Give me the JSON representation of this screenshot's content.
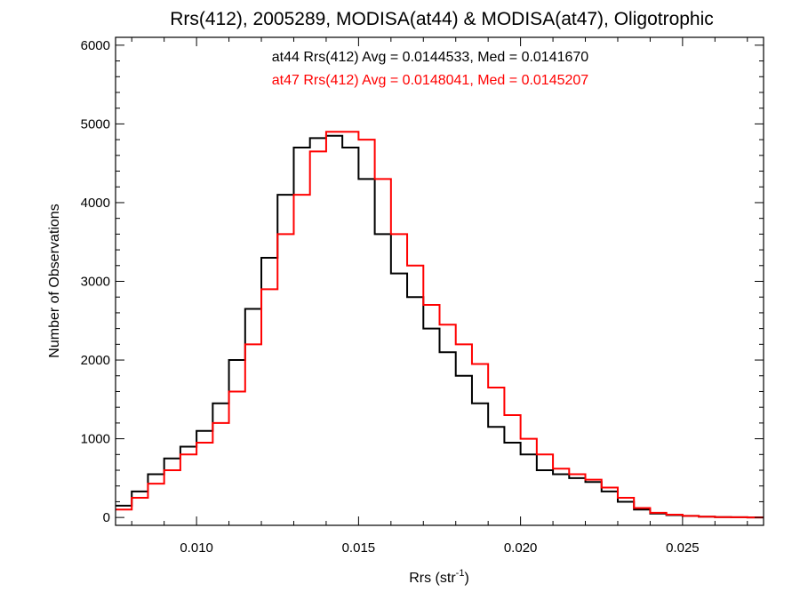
{
  "chart_data": {
    "type": "line",
    "title": "Rrs(412), 2005289, MODISA(at44) & MODISA(at47), Oligotrophic",
    "xlabel_main": "Rrs (str",
    "xlabel_sup": "-1",
    "xlabel_close": ")",
    "ylabel": "Number of Observations",
    "xlim": [
      0.0075,
      0.0275
    ],
    "ylim": [
      -100,
      6100
    ],
    "x_ticks": [
      0.01,
      0.015,
      0.02,
      0.025
    ],
    "x_tick_labels": [
      "0.010",
      "0.015",
      "0.020",
      "0.025"
    ],
    "y_ticks": [
      0,
      1000,
      2000,
      3000,
      4000,
      5000,
      6000
    ],
    "y_tick_labels": [
      "0",
      "1000",
      "2000",
      "3000",
      "4000",
      "5000",
      "6000"
    ],
    "grid": false,
    "annotations": [
      {
        "text": "at44 Rrs(412) Avg = 0.0144533, Med = 0.0141670",
        "color": "#000000"
      },
      {
        "text": "at47 Rrs(412) Avg = 0.0148041, Med = 0.0145207",
        "color": "#ff0000"
      }
    ],
    "series": [
      {
        "color": "#000000",
        "style": "step",
        "x": [
          0.0075,
          0.008,
          0.0085,
          0.009,
          0.0095,
          0.01,
          0.0105,
          0.011,
          0.0115,
          0.012,
          0.0125,
          0.013,
          0.0135,
          0.014,
          0.0145,
          0.015,
          0.0155,
          0.016,
          0.0165,
          0.017,
          0.0175,
          0.018,
          0.0185,
          0.019,
          0.0195,
          0.02,
          0.0205,
          0.021,
          0.0215,
          0.022,
          0.0225,
          0.023,
          0.0235,
          0.024,
          0.0245,
          0.025,
          0.0255,
          0.026,
          0.0265,
          0.027,
          0.0275
        ],
        "y": [
          150,
          330,
          550,
          750,
          900,
          1100,
          1450,
          2000,
          2650,
          3300,
          4100,
          4700,
          4820,
          4850,
          4700,
          4300,
          3600,
          3100,
          2800,
          2400,
          2100,
          1800,
          1450,
          1150,
          950,
          800,
          600,
          550,
          500,
          450,
          330,
          200,
          100,
          50,
          30,
          20,
          10,
          5,
          3,
          0,
          0
        ]
      },
      {
        "color": "#ff0000",
        "style": "step",
        "x": [
          0.0075,
          0.008,
          0.0085,
          0.009,
          0.0095,
          0.01,
          0.0105,
          0.011,
          0.0115,
          0.012,
          0.0125,
          0.013,
          0.0135,
          0.014,
          0.0145,
          0.015,
          0.0155,
          0.016,
          0.0165,
          0.017,
          0.0175,
          0.018,
          0.0185,
          0.019,
          0.0195,
          0.02,
          0.0205,
          0.021,
          0.0215,
          0.022,
          0.0225,
          0.023,
          0.0235,
          0.024,
          0.0245,
          0.025,
          0.0255,
          0.026,
          0.0265,
          0.027,
          0.0275
        ],
        "y": [
          100,
          250,
          430,
          600,
          800,
          950,
          1200,
          1600,
          2200,
          2900,
          3600,
          4100,
          4650,
          4900,
          4900,
          4800,
          4300,
          3600,
          3200,
          2700,
          2450,
          2200,
          1950,
          1650,
          1300,
          1000,
          800,
          620,
          550,
          480,
          380,
          250,
          120,
          60,
          35,
          20,
          10,
          5,
          3,
          0,
          0
        ]
      }
    ]
  }
}
